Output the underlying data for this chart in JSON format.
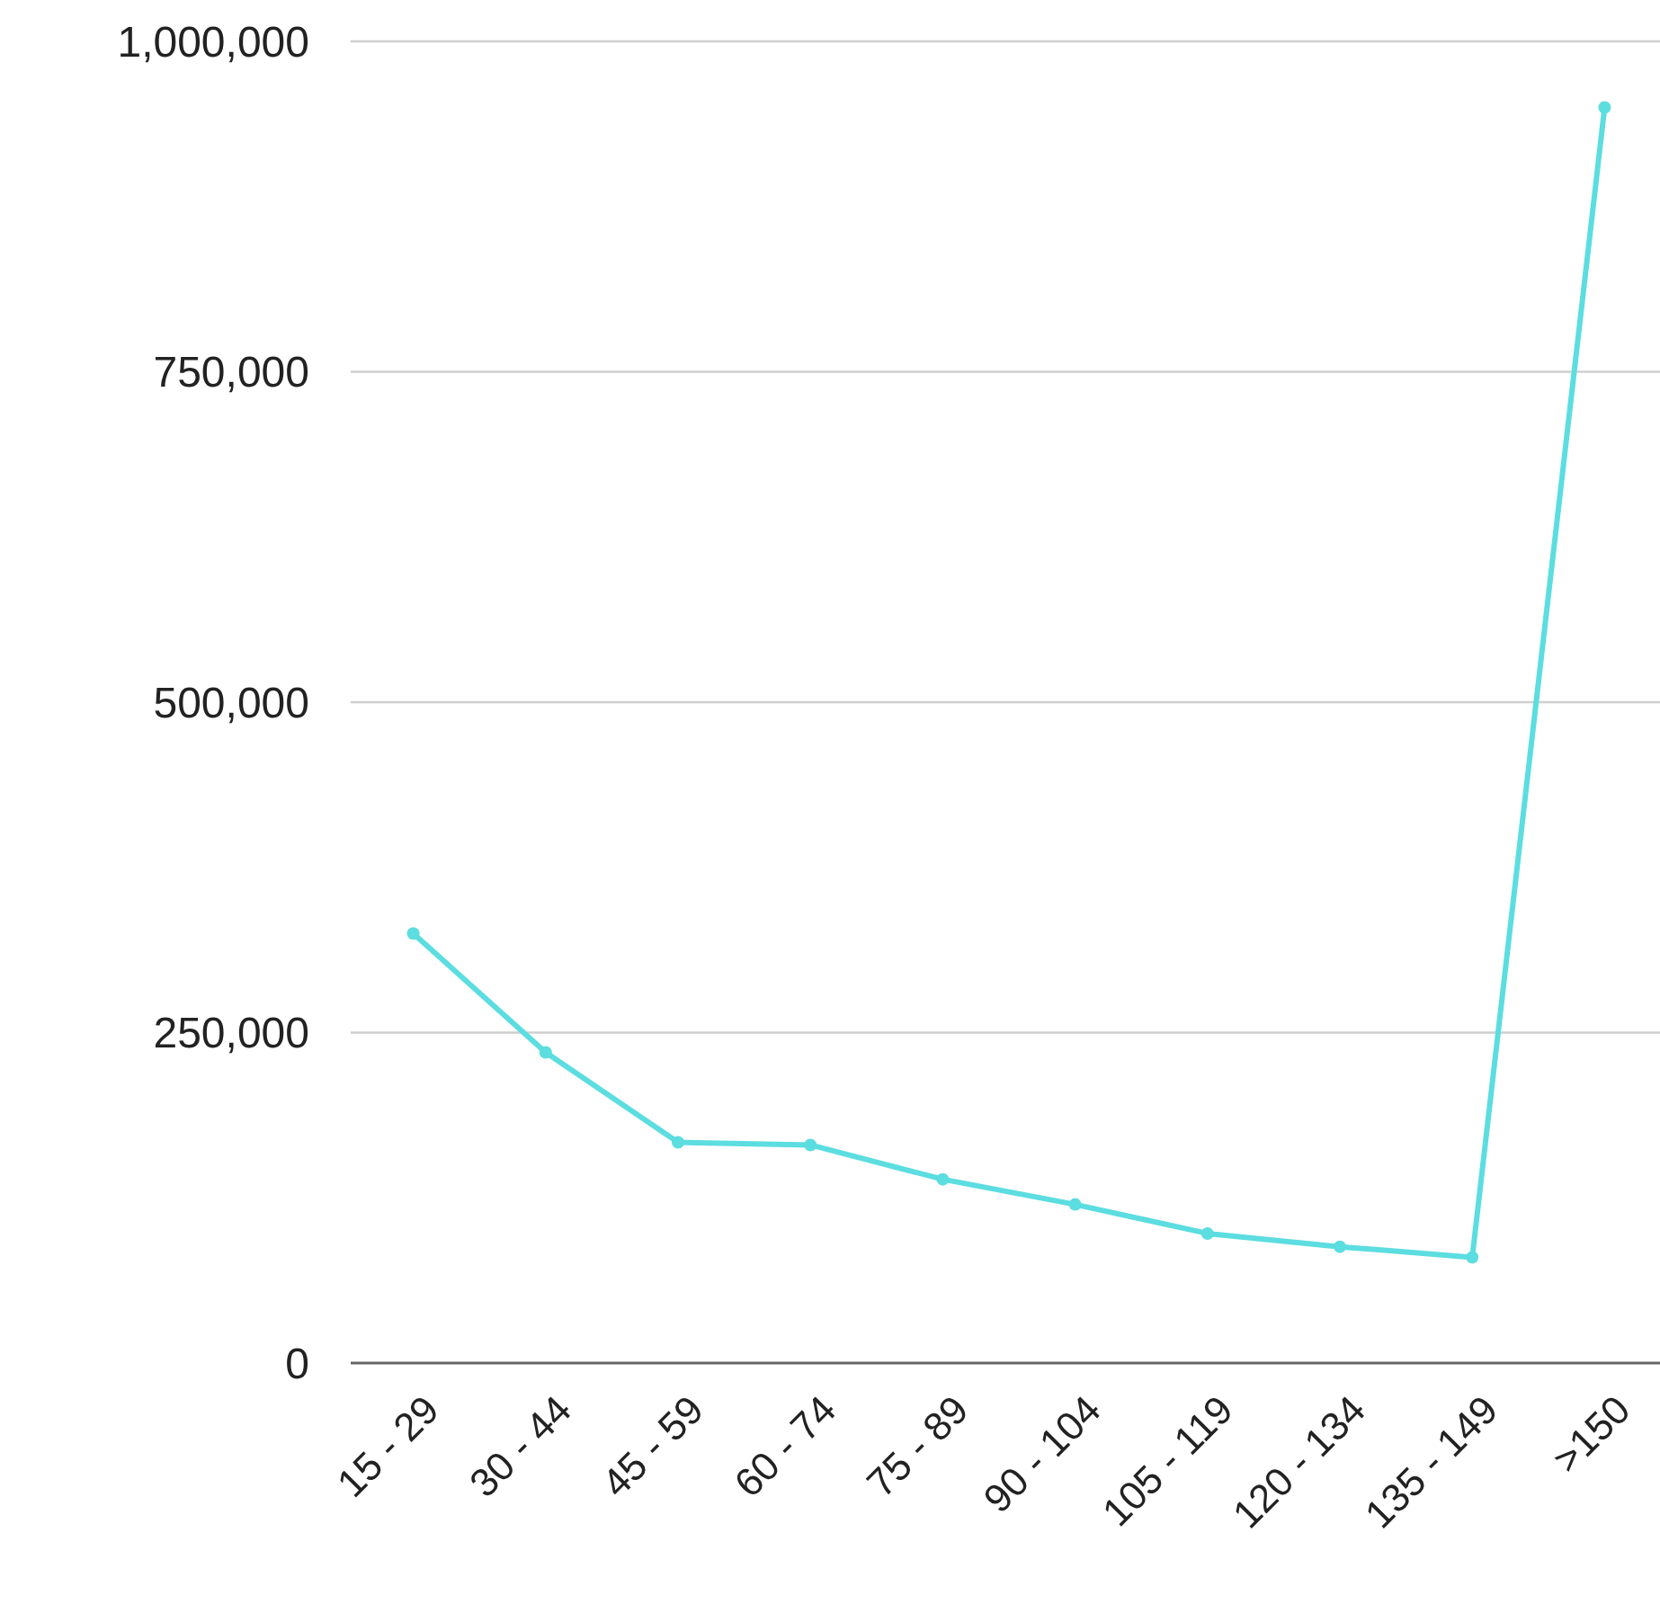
{
  "chart_data": {
    "type": "line",
    "categories": [
      "15 - 29",
      "30 - 44",
      "45 - 59",
      "60 - 74",
      "75 - 89",
      "90 - 104",
      "105 - 119",
      "120 - 134",
      "135 - 149",
      ">150"
    ],
    "series": [
      {
        "color": "#5cdde0",
        "values": [
          325000,
          235000,
          167000,
          165000,
          139000,
          120000,
          98000,
          88000,
          80000,
          950000
        ]
      }
    ],
    "ylim": [
      0,
      1000000
    ],
    "yticks": [
      {
        "value": 0,
        "label": "0"
      },
      {
        "value": 250000,
        "label": "250,000"
      },
      {
        "value": 500000,
        "label": "500,000"
      },
      {
        "value": 750000,
        "label": "750,000"
      },
      {
        "value": 1000000,
        "label": "1,000,000"
      }
    ],
    "grid": "y",
    "marker": "circle",
    "line_style": "solid"
  }
}
